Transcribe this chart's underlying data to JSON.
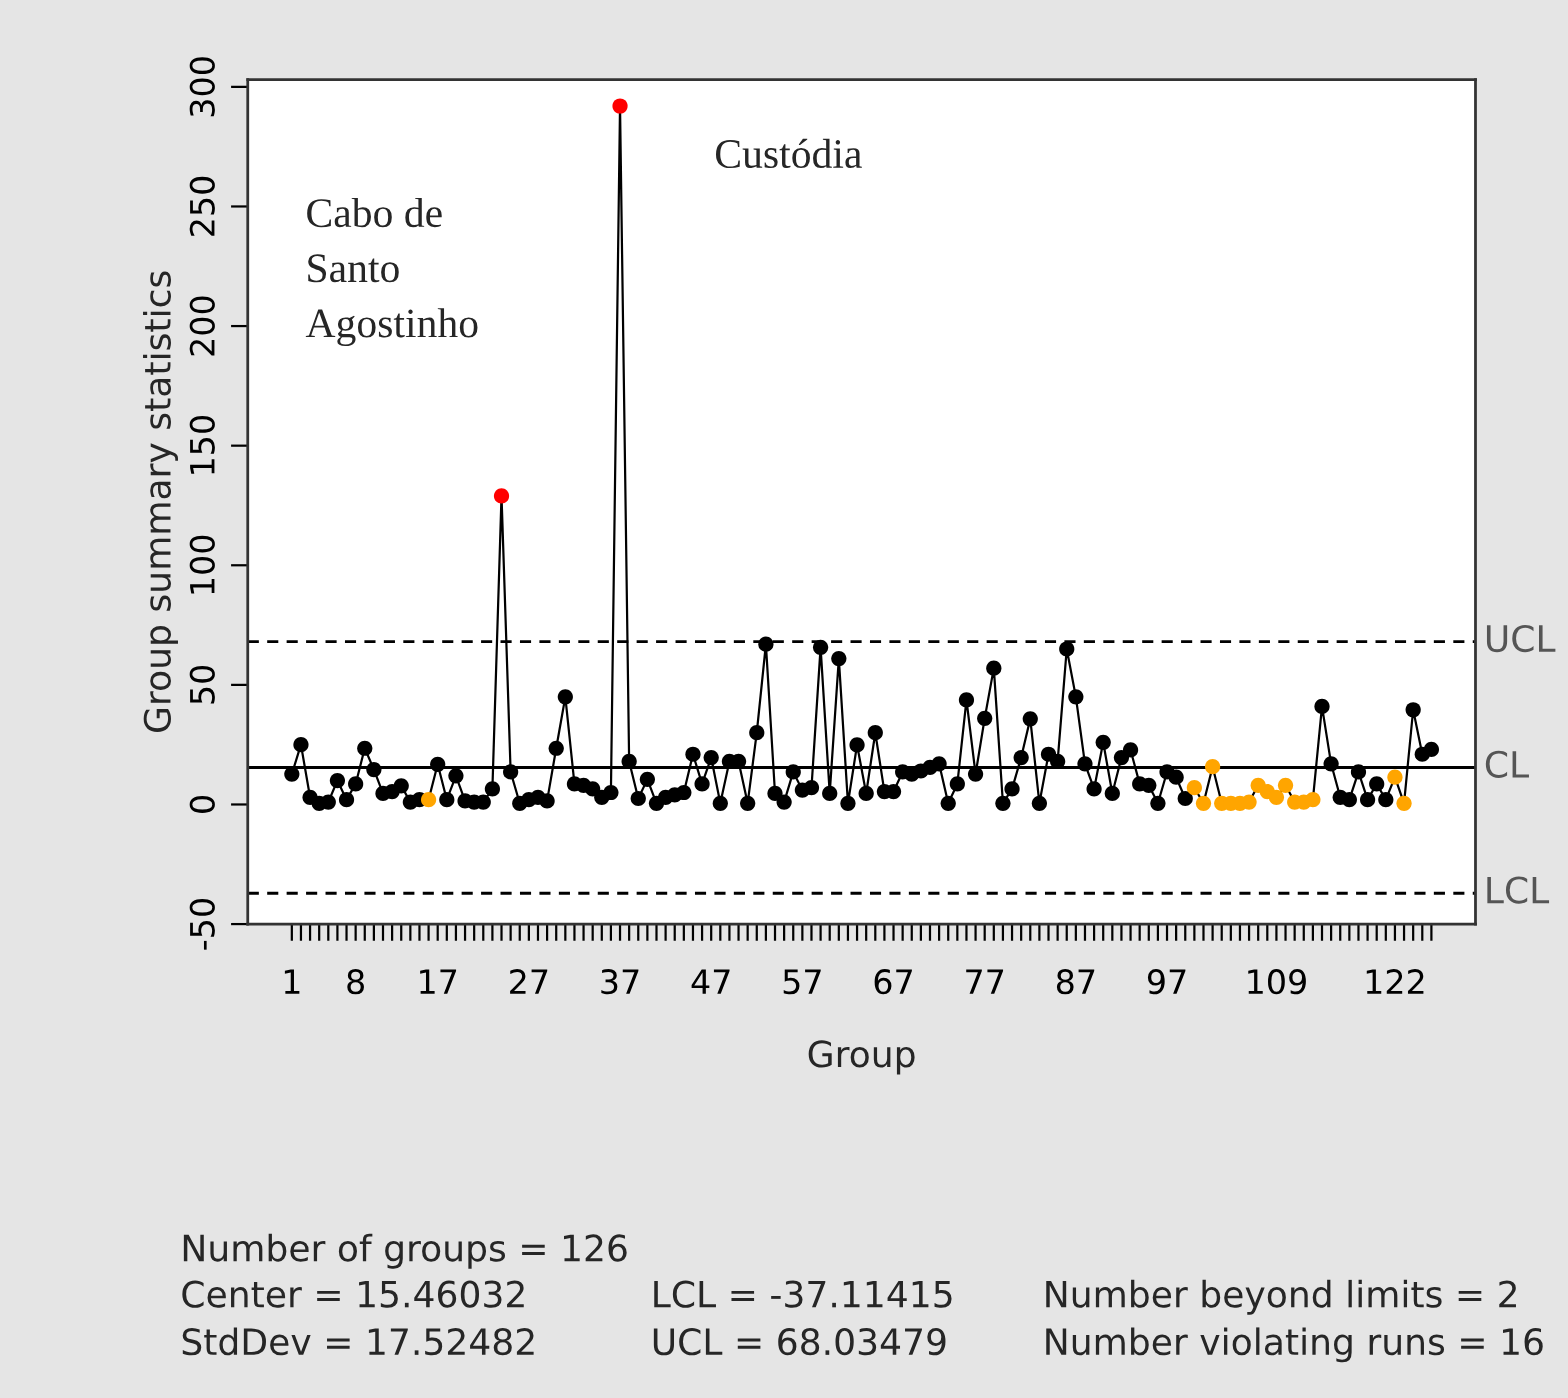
{
  "chart_data": {
    "type": "line",
    "xlabel": "Group",
    "ylabel": "Group summary statistics",
    "categories": [
      "1",
      null,
      null,
      null,
      null,
      null,
      null,
      "8",
      null,
      null,
      null,
      null,
      null,
      null,
      null,
      null,
      "17",
      null,
      null,
      null,
      null,
      null,
      null,
      null,
      null,
      null,
      "27",
      null,
      null,
      null,
      null,
      null,
      null,
      null,
      null,
      null,
      "37",
      null,
      null,
      null,
      null,
      null,
      null,
      null,
      null,
      null,
      "47",
      null,
      null,
      null,
      null,
      null,
      null,
      null,
      null,
      null,
      "57",
      null,
      null,
      null,
      null,
      null,
      null,
      null,
      null,
      null,
      "67",
      null,
      null,
      null,
      null,
      null,
      null,
      null,
      null,
      null,
      "77",
      null,
      null,
      null,
      null,
      null,
      null,
      null,
      null,
      null,
      "87",
      null,
      null,
      null,
      null,
      null,
      null,
      null,
      null,
      null,
      "97",
      null,
      null,
      null,
      null,
      null,
      null,
      null,
      null,
      null,
      null,
      null,
      "109",
      null,
      null,
      null,
      null,
      null,
      null,
      null,
      null,
      null,
      null,
      null,
      null,
      "122",
      null,
      null,
      null,
      null
    ],
    "series": [
      {
        "color": "#000000",
        "values": [
          12.7,
          25,
          3,
          0.5,
          1,
          10,
          2,
          8.6,
          23.5,
          14.6,
          4.6,
          5.4,
          7.8,
          1,
          2,
          2,
          16.8,
          2,
          12,
          1.5,
          1,
          1,
          6.5,
          129,
          13.6,
          0.5,
          2,
          3,
          1.5,
          23.5,
          45,
          8.6,
          8,
          6.5,
          3,
          5,
          292,
          18,
          2.5,
          10.5,
          0.5,
          3,
          4,
          5,
          21,
          8.6,
          19.6,
          0.5,
          18,
          18,
          0.5,
          30,
          67,
          4.6,
          1,
          13.6,
          6,
          7,
          65.7,
          4.6,
          61,
          0.5,
          24.9,
          4.6,
          30,
          5.4,
          5.4,
          13.6,
          12.7,
          14,
          15.5,
          17,
          0.5,
          8.6,
          43.7,
          12.7,
          36,
          57,
          0.5,
          6.5,
          19.6,
          35.8,
          0.5,
          21,
          18,
          65,
          45,
          17,
          6.5,
          26,
          4.6,
          19.6,
          22.8,
          8.6,
          8,
          0.5,
          13.6,
          11.4,
          2.5,
          7,
          0.5,
          15.8,
          0.5,
          0.5,
          0.5,
          1,
          8,
          5.4,
          3,
          8,
          1,
          1,
          2,
          41,
          17,
          3,
          2,
          13.6,
          2,
          8.6,
          2,
          11.4,
          0.5,
          39.6,
          21,
          23
        ],
        "colors": [
          "#000000",
          "#000000",
          "#000000",
          "#000000",
          "#000000",
          "#000000",
          "#000000",
          "#000000",
          "#000000",
          "#000000",
          "#000000",
          "#000000",
          "#000000",
          "#000000",
          "#000000",
          "#ffa500",
          "#000000",
          "#000000",
          "#000000",
          "#000000",
          "#000000",
          "#000000",
          "#000000",
          "#ff0000",
          "#000000",
          "#000000",
          "#000000",
          "#000000",
          "#000000",
          "#000000",
          "#000000",
          "#000000",
          "#000000",
          "#000000",
          "#000000",
          "#000000",
          "#ff0000",
          "#000000",
          "#000000",
          "#000000",
          "#000000",
          "#000000",
          "#000000",
          "#000000",
          "#000000",
          "#000000",
          "#000000",
          "#000000",
          "#000000",
          "#000000",
          "#000000",
          "#000000",
          "#000000",
          "#000000",
          "#000000",
          "#000000",
          "#000000",
          "#000000",
          "#000000",
          "#000000",
          "#000000",
          "#000000",
          "#000000",
          "#000000",
          "#000000",
          "#000000",
          "#000000",
          "#000000",
          "#000000",
          "#000000",
          "#000000",
          "#000000",
          "#000000",
          "#000000",
          "#000000",
          "#000000",
          "#000000",
          "#000000",
          "#000000",
          "#000000",
          "#000000",
          "#000000",
          "#000000",
          "#000000",
          "#000000",
          "#000000",
          "#000000",
          "#000000",
          "#000000",
          "#000000",
          "#000000",
          "#000000",
          "#000000",
          "#000000",
          "#000000",
          "#000000",
          "#000000",
          "#000000",
          "#000000",
          "#ffa500",
          "#ffa500",
          "#ffa500",
          "#ffa500",
          "#ffa500",
          "#ffa500",
          "#ffa500",
          "#ffa500",
          "#ffa500",
          "#ffa500",
          "#ffa500",
          "#ffa500",
          "#ffa500",
          "#ffa500",
          "#000000",
          "#000000",
          "#000000",
          "#000000",
          "#000000",
          "#000000",
          "#000000",
          "#000000",
          "#ffa500",
          "#ffa500",
          "#000000",
          "#000000",
          "#000000"
        ]
      }
    ],
    "marker": "circle",
    "ylim": [
      -50,
      303
    ],
    "yticks": [
      -50,
      0,
      50,
      100,
      150,
      200,
      250,
      300
    ],
    "grid": false,
    "legend": false,
    "ref_lines": [
      {
        "axis": "y",
        "value": 68.03479,
        "label": "UCL",
        "line_style": "dashed",
        "color": "#000000"
      },
      {
        "axis": "y",
        "value": 15.46032,
        "label": "CL",
        "line_style": "solid",
        "color": "#000000"
      },
      {
        "axis": "y",
        "value": -37.11415,
        "label": "LCL",
        "line_style": "dashed",
        "color": "#000000"
      }
    ],
    "annotations": [
      "Cabo de\nSanto\nAgostinho",
      "Custódia",
      "Number of groups = 126",
      "Center = 15.46032",
      "StdDev = 17.52482",
      "LCL = -37.11415",
      "UCL = 68.03479",
      "Number beyond limits = 2",
      "Number violating runs = 16"
    ]
  }
}
